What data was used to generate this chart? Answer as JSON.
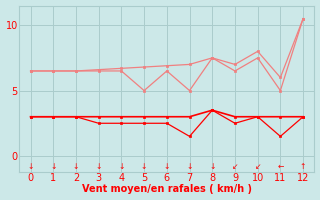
{
  "x": [
    0,
    1,
    2,
    3,
    4,
    5,
    6,
    7,
    8,
    9,
    10,
    11,
    12
  ],
  "line_light1_y": [
    6.5,
    6.5,
    6.5,
    6.5,
    6.5,
    5.0,
    6.5,
    5.0,
    7.5,
    6.5,
    7.5,
    5.0,
    10.5
  ],
  "line_light2_y": [
    6.5,
    6.5,
    6.5,
    6.6,
    6.7,
    6.8,
    6.9,
    7.0,
    7.5,
    7.0,
    8.0,
    6.0,
    10.5
  ],
  "line_dark1_y": [
    3.0,
    3.0,
    3.0,
    2.5,
    2.5,
    2.5,
    2.5,
    1.5,
    3.5,
    2.5,
    3.0,
    1.5,
    3.0
  ],
  "line_dark2_y": [
    3.0,
    3.0,
    3.0,
    3.0,
    3.0,
    3.0,
    3.0,
    3.0,
    3.5,
    3.0,
    3.0,
    3.0,
    3.0
  ],
  "light_color": "#f08080",
  "dark_color": "#ff0000",
  "background_color": "#cce8e8",
  "grid_color": "#aacccc",
  "xlabel": "Vent moyen/en rafales ( km/h )",
  "xlabel_color": "#ff0000",
  "ytick_labels": [
    "0",
    "5",
    "10"
  ],
  "ytick_vals": [
    0,
    5,
    10
  ],
  "ylim": [
    -1.2,
    11.5
  ],
  "xlim": [
    -0.5,
    12.5
  ],
  "arrow_chars": [
    "↓",
    "↓",
    "↓",
    "↓",
    "↓",
    "↓",
    "↓",
    "↓",
    "↓",
    "↙",
    "↙",
    "←",
    "↑"
  ]
}
